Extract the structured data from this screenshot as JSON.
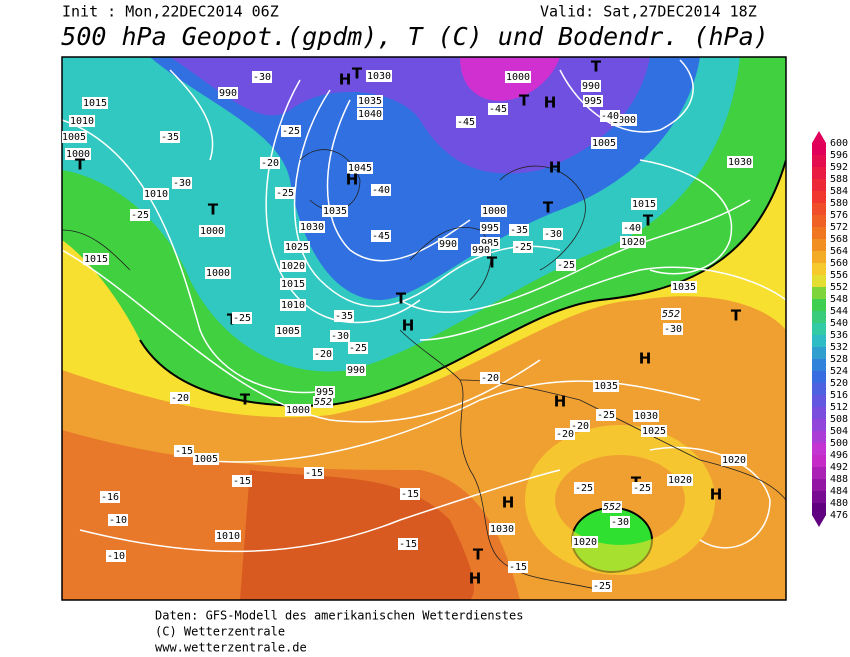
{
  "header": {
    "init": "Init : Mon,22DEC2014 06Z",
    "valid": "Valid: Sat,27DEC2014 18Z",
    "title": "500 hPa Geopot.(gpdm), T (C) und Bodendr. (hPa)"
  },
  "colorbar": {
    "ticks": [
      600,
      596,
      592,
      588,
      584,
      580,
      576,
      572,
      568,
      564,
      560,
      556,
      552,
      548,
      544,
      540,
      536,
      532,
      528,
      524,
      520,
      516,
      512,
      508,
      504,
      500,
      496,
      492,
      488,
      484,
      480,
      476
    ]
  },
  "map": {
    "labels": [
      "1015",
      "1010",
      "1005",
      "1000",
      "T",
      "1010",
      "-35",
      "-30",
      "-25",
      "T",
      "1000",
      "1015",
      "1000",
      "T",
      "-25",
      "1005",
      "1010",
      "1015",
      "1020",
      "1025",
      "1030",
      "1035",
      "1045",
      "H",
      "1035",
      "1040",
      "1030",
      "H",
      "T",
      "990",
      "-30",
      "-25",
      "-25",
      "-20",
      "-35",
      "-30",
      "-25",
      "-20",
      "990",
      "995",
      "552",
      "1000",
      "T",
      "-20",
      "-15",
      "1005",
      "-15",
      "-15",
      "-16",
      "-10",
      "-10",
      "1010",
      "-15",
      "-15",
      "T",
      "H",
      "-15",
      "1030",
      "H",
      "H",
      "T",
      "-45",
      "-40",
      "1000",
      "995",
      "985",
      "990",
      "990",
      "T",
      "-35",
      "-30",
      "-25",
      "-25",
      "T",
      "H",
      "1000",
      "H",
      "T",
      "-45",
      "-45",
      "990",
      "995",
      "T",
      "1000",
      "1005",
      "-40",
      "1030",
      "1015",
      "T",
      "-40",
      "1020",
      "1035",
      "552",
      "-30",
      "T",
      "H",
      "1035",
      "-25",
      "1030",
      "1025",
      "-20",
      "-20",
      "H",
      "1020",
      "H",
      "1020",
      "T",
      "-25",
      "-25",
      "552",
      "-30",
      "1020",
      "-25",
      "-20"
    ]
  },
  "footer": {
    "lines": [
      "Daten: GFS-Modell des amerikanischen Wetterdienstes",
      "(C) Wetterzentrale",
      "www.wetterzentrale.de"
    ]
  }
}
